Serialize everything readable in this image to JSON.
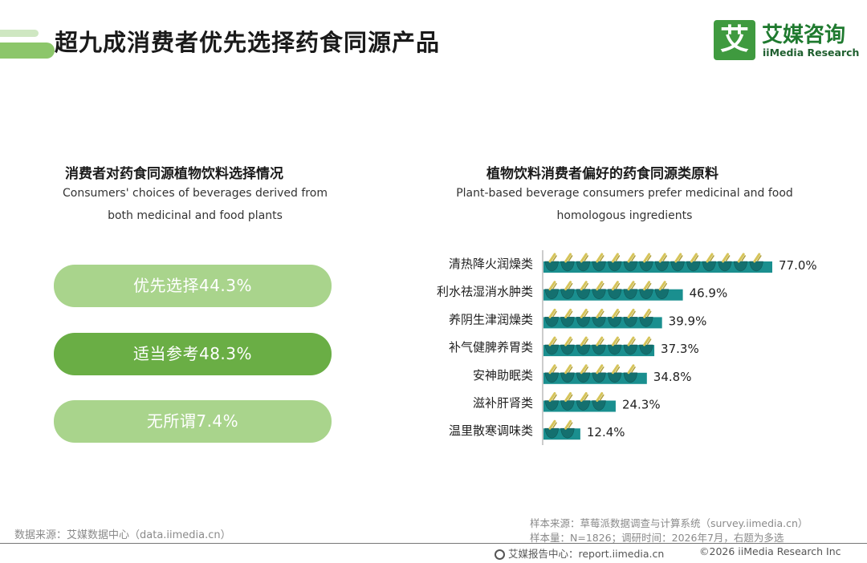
{
  "header": {
    "title": "超九成消费者优先选择药食同源产品",
    "logo_mark": "艾",
    "logo_cn": "艾媒咨询",
    "logo_en": "iiMedia Research"
  },
  "left_panel": {
    "title": "消费者对药食同源植物饮料选择情况",
    "subtitle_line1": "Consumers' choices of beverages derived from",
    "subtitle_line2": "both medicinal and food plants",
    "options": [
      {
        "label": "优先选择44.3%",
        "color": "#a9d48c"
      },
      {
        "label": "适当参考48.3%",
        "color": "#6aae45"
      },
      {
        "label": "无所谓7.4%",
        "color": "#a9d48c"
      }
    ]
  },
  "right_panel": {
    "title": "植物饮料消费者偏好的药食同源类原料",
    "subtitle_line1": "Plant-based beverage consumers prefer medicinal and food",
    "subtitle_line2": "homologous ingredients"
  },
  "chart_data": {
    "type": "bar",
    "orientation": "horizontal",
    "title": "植物饮料消费者偏好的药食同源类原料",
    "categories": [
      "清热降火润燥类",
      "利水祛湿消水肿类",
      "养阴生津润燥类",
      "补气健脾养胃类",
      "安神助眠类",
      "滋补肝肾类",
      "温里散寒调味类"
    ],
    "values": [
      77.0,
      46.9,
      39.9,
      37.3,
      34.8,
      24.3,
      12.4
    ],
    "value_labels": [
      "77.0%",
      "46.9%",
      "39.9%",
      "37.3%",
      "34.8%",
      "24.3%",
      "12.4%"
    ],
    "xlim": [
      0,
      100
    ],
    "grid": false,
    "bar_color": "#1a8f8f",
    "icon_color": "#d6c45a"
  },
  "footer": {
    "source": "数据来源：艾媒数据中心（data.iimedia.cn）",
    "sample_source": "样本来源：草莓派数据调查与计算系统（survey.iimedia.cn）",
    "sample_info": "样本量：N=1826；调研时间：2026年7月，右题为多选",
    "report_center": "艾媒报告中心：report.iimedia.cn",
    "copyright": "©2026  iiMedia Research  Inc"
  }
}
